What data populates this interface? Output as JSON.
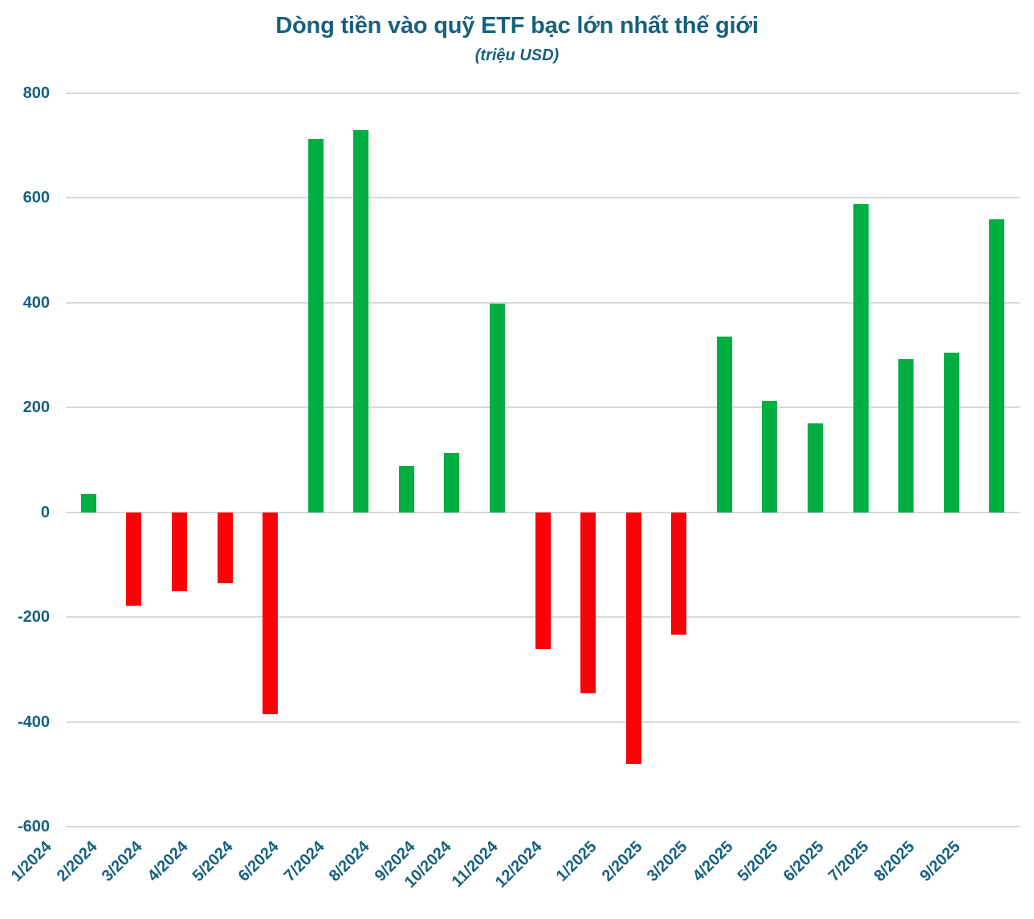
{
  "chart_data": {
    "type": "bar",
    "title": "Dòng tiền vào quỹ ETF bạc lớn nhất thế giới",
    "subtitle": "(triệu USD)",
    "categories": [
      "1/2024",
      "2/2024",
      "3/2024",
      "4/2024",
      "5/2024",
      "6/2024",
      "7/2024",
      "8/2024",
      "9/2024",
      "10/2024",
      "11/2024",
      "12/2024",
      "1/2025",
      "2/2025",
      "3/2025",
      "4/2025",
      "5/2025",
      "6/2025",
      "7/2025",
      "8/2025",
      "9/2025"
    ],
    "values": [
      35,
      -178,
      -151,
      -135,
      -386,
      712,
      729,
      88,
      113,
      398,
      -261,
      -346,
      -481,
      -234,
      336,
      212,
      170,
      589,
      293,
      304,
      560
    ],
    "xlabel": "",
    "ylabel": "",
    "ylim": [
      -600,
      800
    ],
    "yticks": [
      800,
      600,
      400,
      200,
      0,
      -200,
      -400,
      -600
    ],
    "grid": true,
    "legend": "none",
    "colors": {
      "positive": "#00AE42",
      "negative": "#FC0107",
      "gridline": "#D9D9D9",
      "text": "#15617F"
    }
  }
}
